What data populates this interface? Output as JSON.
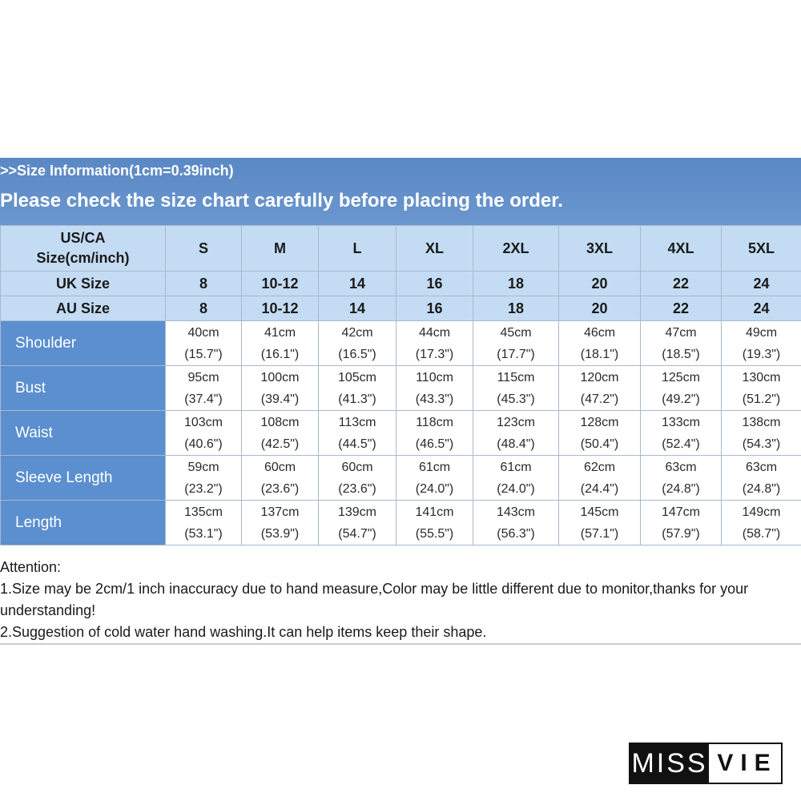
{
  "header": {
    "info_line": ">>Size Information(1cm=0.39inch)",
    "instruction": "Please check the size chart carefully before placing the order."
  },
  "size_table": {
    "us_ca_label_line1": "US/CA",
    "us_ca_label_line2": "Size(cm/inch)",
    "sizes": [
      "S",
      "M",
      "L",
      "XL",
      "2XL",
      "3XL",
      "4XL",
      "5XL"
    ],
    "uk_label": "UK Size",
    "uk_sizes": [
      "8",
      "10-12",
      "14",
      "16",
      "18",
      "20",
      "22",
      "24"
    ],
    "au_label": "AU Size",
    "au_sizes": [
      "8",
      "10-12",
      "14",
      "16",
      "18",
      "20",
      "22",
      "24"
    ],
    "measurements": [
      {
        "label": "Shoulder",
        "cm": [
          "40cm",
          "41cm",
          "42cm",
          "44cm",
          "45cm",
          "46cm",
          "47cm",
          "49cm"
        ],
        "inch": [
          "(15.7\")",
          "(16.1\")",
          "(16.5\")",
          "(17.3\")",
          "(17.7\")",
          "(18.1\")",
          "(18.5\")",
          "(19.3\")"
        ]
      },
      {
        "label": "Bust",
        "cm": [
          "95cm",
          "100cm",
          "105cm",
          "110cm",
          "115cm",
          "120cm",
          "125cm",
          "130cm"
        ],
        "inch": [
          "(37.4\")",
          "(39.4\")",
          "(41.3\")",
          "(43.3\")",
          "(45.3\")",
          "(47.2\")",
          "(49.2\")",
          "(51.2\")"
        ]
      },
      {
        "label": "Waist",
        "cm": [
          "103cm",
          "108cm",
          "113cm",
          "118cm",
          "123cm",
          "128cm",
          "133cm",
          "138cm"
        ],
        "inch": [
          "(40.6\")",
          "(42.5\")",
          "(44.5\")",
          "(46.5\")",
          "(48.4\")",
          "(50.4\")",
          "(52.4\")",
          "(54.3\")"
        ]
      },
      {
        "label": "Sleeve Length",
        "cm": [
          "59cm",
          "60cm",
          "60cm",
          "61cm",
          "61cm",
          "62cm",
          "63cm",
          "63cm"
        ],
        "inch": [
          "(23.2\")",
          "(23.6\")",
          "(23.6\")",
          "(24.0\")",
          "(24.0\")",
          "(24.4\")",
          "(24.8\")",
          "(24.8\")"
        ]
      },
      {
        "label": "Length",
        "cm": [
          "135cm",
          "137cm",
          "139cm",
          "141cm",
          "143cm",
          "145cm",
          "147cm",
          "149cm"
        ],
        "inch": [
          "(53.1\")",
          "(53.9\")",
          "(54.7\")",
          "(55.5\")",
          "(56.3\")",
          "(57.1\")",
          "(57.9\")",
          "(58.7\")"
        ]
      }
    ]
  },
  "notes": {
    "title": "Attention:",
    "note1": "1.Size may be 2cm/1 inch inaccuracy due to hand measure,Color may be little different due to monitor,thanks for your understanding!",
    "note2": "2.Suggestion of cold water hand washing.It can help items keep their shape."
  },
  "logo": {
    "left": "MISS",
    "right": "VIE"
  },
  "colors": {
    "banner": "#5a88c4",
    "header_cell": "#c3dcf3",
    "label_cell": "#5b8fcf"
  }
}
